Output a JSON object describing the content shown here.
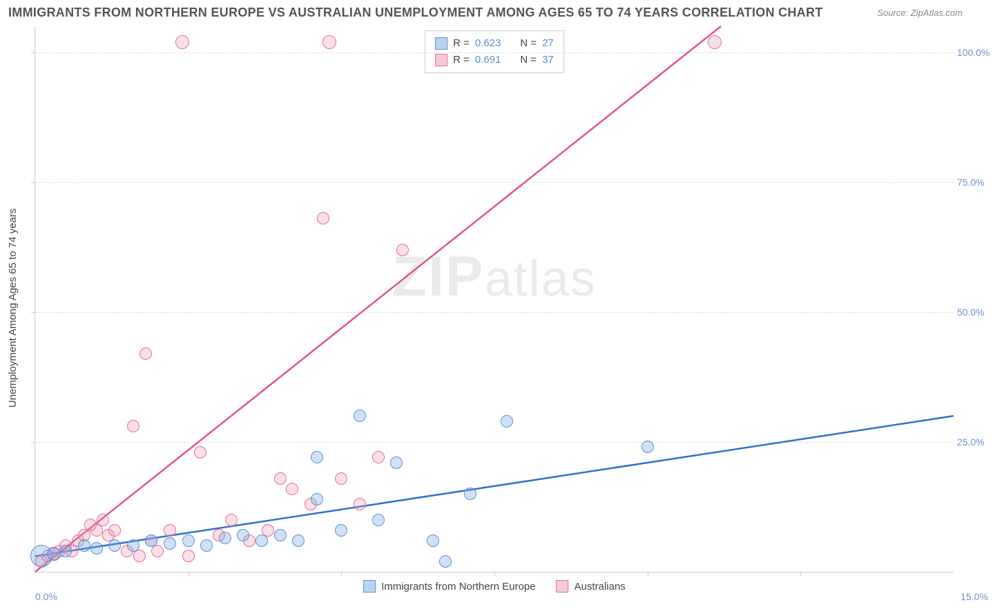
{
  "header": {
    "title": "IMMIGRANTS FROM NORTHERN EUROPE VS AUSTRALIAN UNEMPLOYMENT AMONG AGES 65 TO 74 YEARS CORRELATION CHART",
    "source_prefix": "Source:",
    "source_name": "ZipAtlas.com"
  },
  "axes": {
    "ylabel": "Unemployment Among Ages 65 to 74 years",
    "xmin_label": "0.0%",
    "xmax_label": "15.0%",
    "xlim": [
      0,
      15
    ],
    "ylim": [
      0,
      105
    ],
    "yticks": [
      {
        "v": 25,
        "label": "25.0%"
      },
      {
        "v": 50,
        "label": "50.0%"
      },
      {
        "v": 75,
        "label": "75.0%"
      },
      {
        "v": 100,
        "label": "100.0%"
      }
    ],
    "xticks_minor": [
      2.5,
      5.0,
      7.5,
      10.0,
      12.5
    ],
    "grid_color": "#dddddd",
    "axis_color": "#cccccc"
  },
  "watermark": {
    "zip": "ZIP",
    "atlas": "atlas"
  },
  "legend_top": {
    "rows": [
      {
        "swatch_fill": "#b9d4f0",
        "swatch_border": "#5a8fd6",
        "r_label": "R =",
        "r_val": "0.623",
        "n_label": "N =",
        "n_val": "27"
      },
      {
        "swatch_fill": "#f6c9d6",
        "swatch_border": "#e36f91",
        "r_label": "R =",
        "r_val": "0.691",
        "n_label": "N =",
        "n_val": "37"
      }
    ]
  },
  "legend_bottom": {
    "items": [
      {
        "swatch_fill": "#b9d4f0",
        "swatch_border": "#5a8fd6",
        "label": "Immigrants from Northern Europe"
      },
      {
        "swatch_fill": "#f6c9d6",
        "swatch_border": "#e36f91",
        "label": "Australians"
      }
    ]
  },
  "series": {
    "blue": {
      "point_fill": "rgba(120,170,225,0.35)",
      "point_border": "#5a8fd6",
      "line_color": "#2f6fd0",
      "line": {
        "x1": 0,
        "y1": 3,
        "x2": 15,
        "y2": 30
      },
      "points": [
        {
          "x": 0.1,
          "y": 3,
          "r": 16
        },
        {
          "x": 0.3,
          "y": 3.5,
          "r": 10
        },
        {
          "x": 0.5,
          "y": 4,
          "r": 9
        },
        {
          "x": 0.8,
          "y": 5,
          "r": 9
        },
        {
          "x": 1.0,
          "y": 4.5,
          "r": 9
        },
        {
          "x": 1.3,
          "y": 5,
          "r": 9
        },
        {
          "x": 1.6,
          "y": 5,
          "r": 9
        },
        {
          "x": 1.9,
          "y": 6,
          "r": 9
        },
        {
          "x": 2.2,
          "y": 5.5,
          "r": 9
        },
        {
          "x": 2.5,
          "y": 6,
          "r": 9
        },
        {
          "x": 2.8,
          "y": 5,
          "r": 9
        },
        {
          "x": 3.1,
          "y": 6.5,
          "r": 9
        },
        {
          "x": 3.4,
          "y": 7,
          "r": 9
        },
        {
          "x": 3.7,
          "y": 6,
          "r": 9
        },
        {
          "x": 4.0,
          "y": 7,
          "r": 9
        },
        {
          "x": 4.3,
          "y": 6,
          "r": 9
        },
        {
          "x": 4.6,
          "y": 22,
          "r": 9
        },
        {
          "x": 4.6,
          "y": 14,
          "r": 9
        },
        {
          "x": 5.0,
          "y": 8,
          "r": 9
        },
        {
          "x": 5.3,
          "y": 30,
          "r": 9
        },
        {
          "x": 5.6,
          "y": 10,
          "r": 9
        },
        {
          "x": 5.9,
          "y": 21,
          "r": 9
        },
        {
          "x": 6.5,
          "y": 6,
          "r": 9
        },
        {
          "x": 6.7,
          "y": 2,
          "r": 9
        },
        {
          "x": 7.1,
          "y": 15,
          "r": 9
        },
        {
          "x": 7.7,
          "y": 29,
          "r": 9
        },
        {
          "x": 10.0,
          "y": 24,
          "r": 9
        }
      ]
    },
    "pink": {
      "point_fill": "rgba(235,150,175,0.30)",
      "point_border": "#e36f91",
      "line_color": "#e25581",
      "line": {
        "x1": 0,
        "y1": 0,
        "x2": 11.2,
        "y2": 105
      },
      "points": [
        {
          "x": 0.1,
          "y": 2,
          "r": 9
        },
        {
          "x": 0.2,
          "y": 3,
          "r": 9
        },
        {
          "x": 0.3,
          "y": 3.5,
          "r": 9
        },
        {
          "x": 0.4,
          "y": 4,
          "r": 9
        },
        {
          "x": 0.5,
          "y": 5,
          "r": 9
        },
        {
          "x": 0.6,
          "y": 4,
          "r": 9
        },
        {
          "x": 0.7,
          "y": 6,
          "r": 9
        },
        {
          "x": 0.8,
          "y": 7,
          "r": 9
        },
        {
          "x": 0.9,
          "y": 9,
          "r": 9
        },
        {
          "x": 1.0,
          "y": 8,
          "r": 9
        },
        {
          "x": 1.1,
          "y": 10,
          "r": 9
        },
        {
          "x": 1.2,
          "y": 7,
          "r": 9
        },
        {
          "x": 1.3,
          "y": 8,
          "r": 9
        },
        {
          "x": 1.5,
          "y": 4,
          "r": 9
        },
        {
          "x": 1.6,
          "y": 28,
          "r": 9
        },
        {
          "x": 1.7,
          "y": 3,
          "r": 9
        },
        {
          "x": 1.8,
          "y": 42,
          "r": 9
        },
        {
          "x": 1.9,
          "y": 6,
          "r": 9
        },
        {
          "x": 2.0,
          "y": 4,
          "r": 9
        },
        {
          "x": 2.2,
          "y": 8,
          "r": 9
        },
        {
          "x": 2.4,
          "y": 102,
          "r": 10
        },
        {
          "x": 2.5,
          "y": 3,
          "r": 9
        },
        {
          "x": 2.7,
          "y": 23,
          "r": 9
        },
        {
          "x": 3.0,
          "y": 7,
          "r": 9
        },
        {
          "x": 3.2,
          "y": 10,
          "r": 9
        },
        {
          "x": 3.5,
          "y": 6,
          "r": 9
        },
        {
          "x": 3.8,
          "y": 8,
          "r": 9
        },
        {
          "x": 4.0,
          "y": 18,
          "r": 9
        },
        {
          "x": 4.2,
          "y": 16,
          "r": 9
        },
        {
          "x": 4.5,
          "y": 13,
          "r": 9
        },
        {
          "x": 4.7,
          "y": 68,
          "r": 9
        },
        {
          "x": 4.8,
          "y": 102,
          "r": 10
        },
        {
          "x": 5.0,
          "y": 18,
          "r": 9
        },
        {
          "x": 5.3,
          "y": 13,
          "r": 9
        },
        {
          "x": 5.6,
          "y": 22,
          "r": 9
        },
        {
          "x": 6.0,
          "y": 62,
          "r": 9
        },
        {
          "x": 11.1,
          "y": 102,
          "r": 10
        }
      ]
    }
  },
  "style": {
    "title_color": "#555555",
    "title_fontsize": 18,
    "label_color": "#444444",
    "tick_label_color": "#6b8fd4",
    "background_color": "#ffffff"
  }
}
